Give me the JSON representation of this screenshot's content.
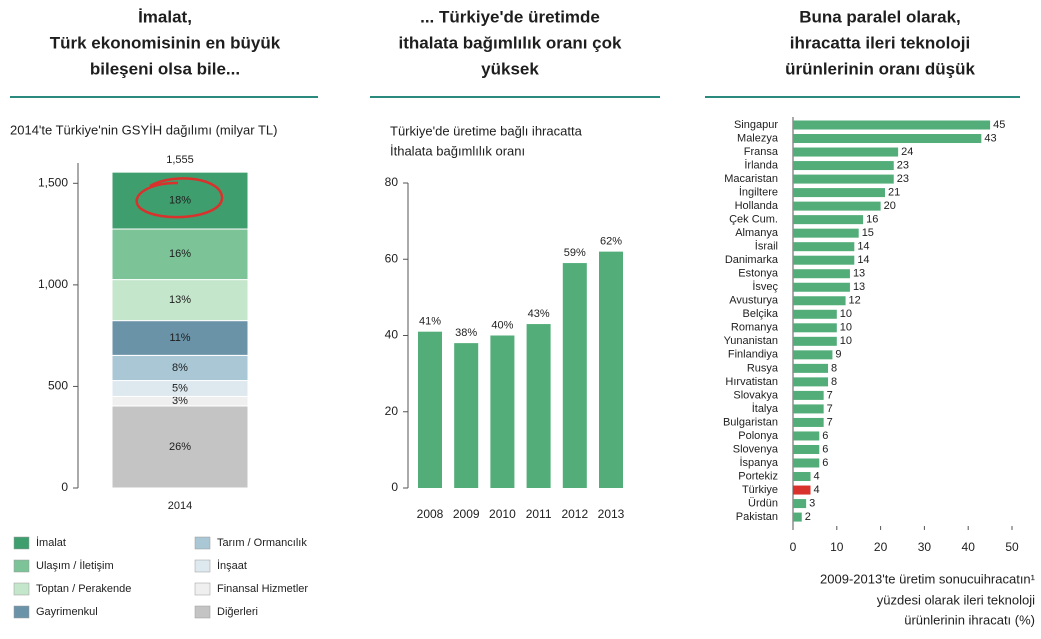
{
  "chart_data": [
    {
      "type": "stacked_bar",
      "title": [
        "İmalat,",
        "Türk ekonomisinin en büyük",
        "bileşeni olsa bile..."
      ],
      "subtitle": "2014'te Türkiye'nin GSYİH dağılımı (milyar TL)",
      "categories": [
        "2014"
      ],
      "total_labels": [
        "1,555"
      ],
      "series": [
        {
          "name": "İmalat",
          "color": "#3f9e6e",
          "values": [
            280
          ],
          "value_labels": [
            "18%"
          ]
        },
        {
          "name": "Ulaşım / İletişim",
          "color": "#7cc397",
          "values": [
            249
          ],
          "value_labels": [
            "16%"
          ]
        },
        {
          "name": "Toptan / Perakende",
          "color": "#c4e6cb",
          "values": [
            202
          ],
          "value_labels": [
            "13%"
          ]
        },
        {
          "name": "Gayrimenkul",
          "color": "#6a93a8",
          "values": [
            171
          ],
          "value_labels": [
            "11%"
          ]
        },
        {
          "name": "Tarım / Ormancılık",
          "color": "#a9c7d5",
          "values": [
            124
          ],
          "value_labels": [
            "8%"
          ]
        },
        {
          "name": "İnşaat",
          "color": "#dde9ef",
          "values": [
            78
          ],
          "value_labels": [
            "5%"
          ]
        },
        {
          "name": "Finansal Hizmetler",
          "color": "#efefef",
          "values": [
            47
          ],
          "value_labels": [
            "3%"
          ]
        },
        {
          "name": "Diğerleri",
          "color": "#c4c4c4",
          "values": [
            404
          ],
          "value_labels": [
            "26%"
          ]
        }
      ],
      "ylim": [
        0,
        1600
      ],
      "yticks": [
        0,
        500,
        {
          "value": 1000,
          "label": "1,000"
        },
        {
          "value": 1500,
          "label": "1,500"
        }
      ],
      "legend": "bottom"
    },
    {
      "type": "bar",
      "title": [
        "... Türkiye'de üretimde",
        "ithalata bağımlılık oranı çok",
        "yüksek"
      ],
      "subtitle": [
        "Türkiye'de üretime bağlı ihracatta",
        "İthalata bağımlılık oranı"
      ],
      "categories": [
        "2008",
        "2009",
        "2010",
        "2011",
        "2012",
        "2013"
      ],
      "values": [
        41,
        38,
        40,
        43,
        59,
        62
      ],
      "value_labels": [
        "41%",
        "38%",
        "40%",
        "43%",
        "59%",
        "62%"
      ],
      "color": "#52ad78",
      "ylim": [
        0,
        80
      ],
      "yticks": [
        0,
        20,
        40,
        60,
        80
      ]
    },
    {
      "type": "hbar",
      "title": [
        "Buna paralel olarak,",
        "ihracatta ileri teknoloji",
        "ürünlerinin oranı düşük"
      ],
      "categories": [
        "Singapur",
        "Malezya",
        "Fransa",
        "İrlanda",
        "Macaristan",
        "İngiltere",
        "Hollanda",
        "Çek Cum.",
        "Almanya",
        "İsrail",
        "Danimarka",
        "Estonya",
        "İsveç",
        "Avusturya",
        "Belçika",
        "Romanya",
        "Yunanistan",
        "Finlandiya",
        "Rusya",
        "Hırvatistan",
        "Slovakya",
        "İtalya",
        "Bulgaristan",
        "Polonya",
        "Slovenya",
        "İspanya",
        "Portekiz",
        "Türkiye",
        "Ürdün",
        "Pakistan"
      ],
      "values": [
        45,
        43,
        24,
        23,
        23,
        21,
        20,
        16,
        15,
        14,
        14,
        13,
        13,
        12,
        10,
        10,
        10,
        9,
        8,
        8,
        7,
        7,
        7,
        6,
        6,
        6,
        4,
        4,
        3,
        2
      ],
      "colors": [
        "#52ad78",
        "#52ad78",
        "#52ad78",
        "#52ad78",
        "#52ad78",
        "#52ad78",
        "#52ad78",
        "#52ad78",
        "#52ad78",
        "#52ad78",
        "#52ad78",
        "#52ad78",
        "#52ad78",
        "#52ad78",
        "#52ad78",
        "#52ad78",
        "#52ad78",
        "#52ad78",
        "#52ad78",
        "#52ad78",
        "#52ad78",
        "#52ad78",
        "#52ad78",
        "#52ad78",
        "#52ad78",
        "#52ad78",
        "#52ad78",
        "#d9312b",
        "#52ad78",
        "#52ad78"
      ],
      "xlim": [
        0,
        50
      ],
      "xticks": [
        0,
        10,
        20,
        30,
        40,
        50
      ],
      "xlabel": [
        "2009-2013'te üretim sonucuihracatın¹",
        "yüzdesi olarak ileri teknoloji",
        "ürünlerinin ihracatı (%)"
      ]
    }
  ]
}
